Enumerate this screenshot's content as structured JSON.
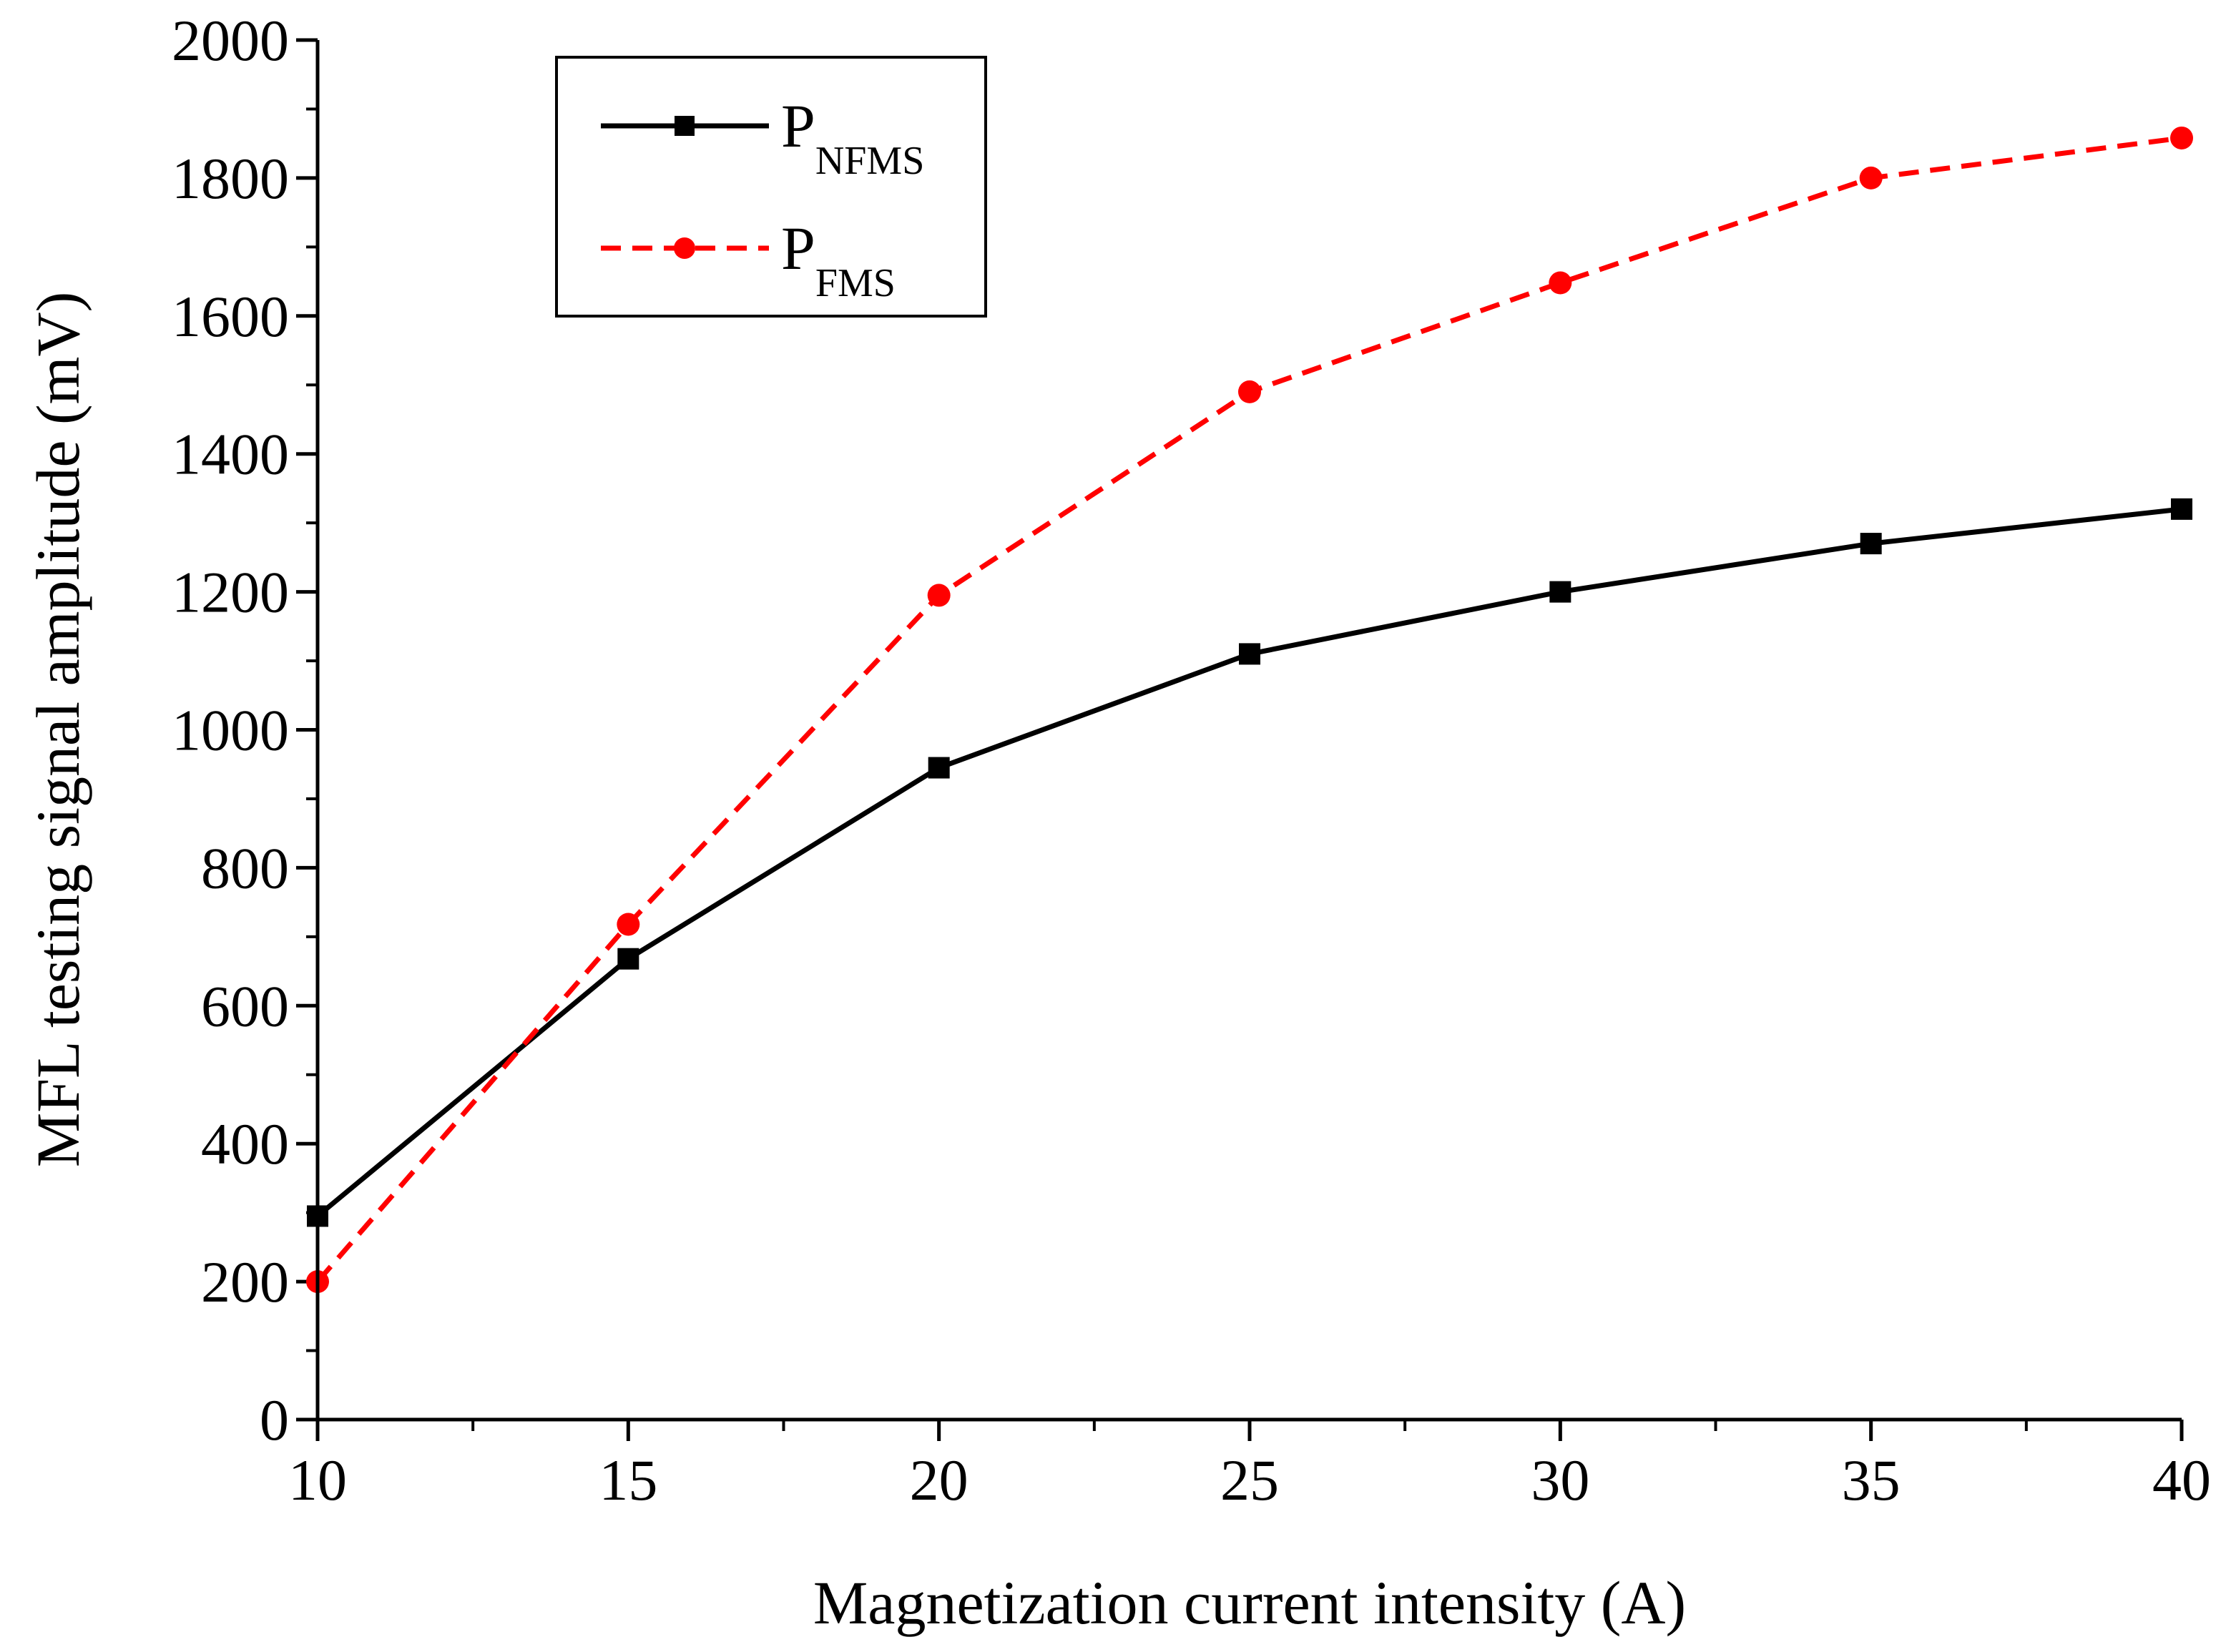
{
  "chart_data": {
    "type": "line",
    "title": "",
    "xlabel": "Magnetization current intensity (A)",
    "ylabel": "MFL testing signal amplitude (mV)",
    "xlim": [
      10,
      40
    ],
    "ylim": [
      0,
      2000
    ],
    "x_ticks": [
      10,
      15,
      20,
      25,
      30,
      35,
      40
    ],
    "x_tick_labels": [
      "10",
      "15",
      "20",
      "25",
      "30",
      "35",
      "40"
    ],
    "y_ticks": [
      0,
      200,
      400,
      600,
      800,
      1000,
      1200,
      1400,
      1600,
      1800,
      2000
    ],
    "y_tick_labels": [
      "0",
      "200",
      "400",
      "600",
      "800",
      "1000",
      "1200",
      "1400",
      "1600",
      "1800",
      "2000"
    ],
    "x": [
      10,
      15,
      20,
      25,
      30,
      35,
      40
    ],
    "series": [
      {
        "name": "PNFMS",
        "legend_main": "P",
        "legend_sub": "NFMS",
        "values": [
          295,
          668,
          945,
          1110,
          1200,
          1270,
          1320
        ],
        "color": "#000000",
        "line_style": "solid",
        "marker": "square"
      },
      {
        "name": "PFMS",
        "legend_main": "P",
        "legend_sub": "FMS",
        "values": [
          200,
          718,
          1195,
          1490,
          1648,
          1800,
          1858
        ],
        "color": "#ff0000",
        "line_style": "dashed",
        "marker": "circle"
      }
    ],
    "legend_position": "top-left",
    "grid": false
  }
}
